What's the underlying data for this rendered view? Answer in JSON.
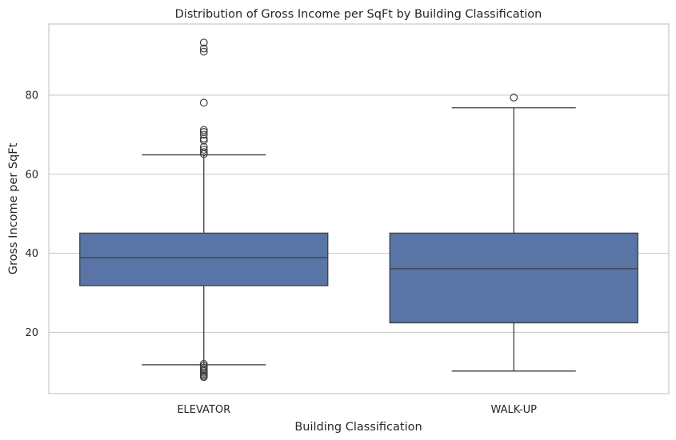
{
  "chart_data": {
    "type": "box",
    "title": "Distribution of Gross Income per SqFt by Building Classification",
    "xlabel": "Building Classification",
    "ylabel": "Gross Income per SqFt",
    "ylim": [
      4.5,
      98
    ],
    "yticks": [
      20,
      40,
      60,
      80
    ],
    "grid": true,
    "box_color": "#5875a6",
    "categories": [
      "ELEVATOR",
      "WALK-UP"
    ],
    "boxes": [
      {
        "category": "ELEVATOR",
        "whisker_low": 11.8,
        "q1": 31.8,
        "median": 38.9,
        "q3": 45.1,
        "whisker_high": 64.9,
        "outliers": [
          93.3,
          91.8,
          91.0,
          78.1,
          71.2,
          70.7,
          70.0,
          69.0,
          68.5,
          66.9,
          66.2,
          65.6,
          65.1,
          12.0,
          11.5,
          11.0,
          10.6,
          10.2,
          9.8,
          9.4,
          9.0,
          8.7
        ]
      },
      {
        "category": "WALK-UP",
        "whisker_low": 10.2,
        "q1": 22.4,
        "median": 36.1,
        "q3": 45.1,
        "whisker_high": 76.8,
        "outliers": [
          79.4
        ]
      }
    ]
  }
}
